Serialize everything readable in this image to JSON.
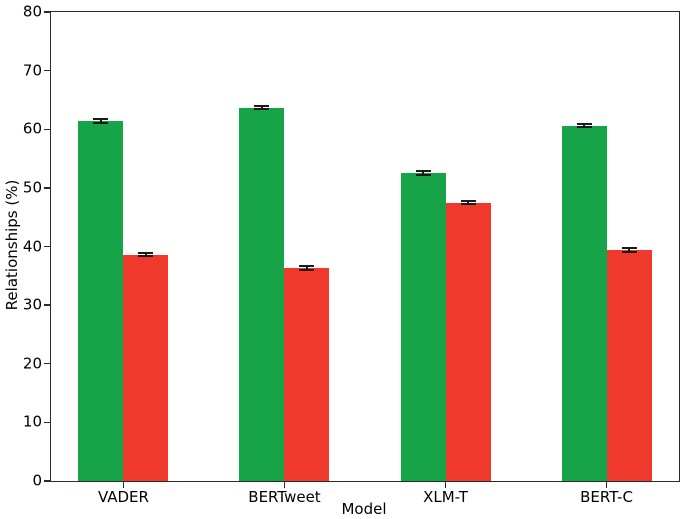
{
  "chart_data": {
    "type": "bar",
    "title": "",
    "xlabel": "Model",
    "ylabel": "Relationships (%)",
    "categories": [
      "VADER",
      "BERTweet",
      "XLM-T",
      "BERT-C"
    ],
    "series": [
      {
        "name": "green",
        "color": "#17a348",
        "values": [
          61.4,
          63.7,
          52.5,
          60.6
        ],
        "errors": [
          0.3,
          0.3,
          0.3,
          0.3
        ]
      },
      {
        "name": "red",
        "color": "#ee392c",
        "values": [
          38.6,
          36.3,
          47.5,
          39.4
        ],
        "errors": [
          0.3,
          0.3,
          0.3,
          0.3
        ]
      }
    ],
    "ylim": [
      0,
      80
    ],
    "yticks": [
      0,
      10,
      20,
      30,
      40,
      50,
      60,
      70,
      80
    ],
    "grid": false,
    "legend": "none",
    "error_bar_color": "#1a1a1a",
    "axis_color": "#2a2a2a",
    "text_color": "#000000",
    "background_color": "#ffffff"
  }
}
